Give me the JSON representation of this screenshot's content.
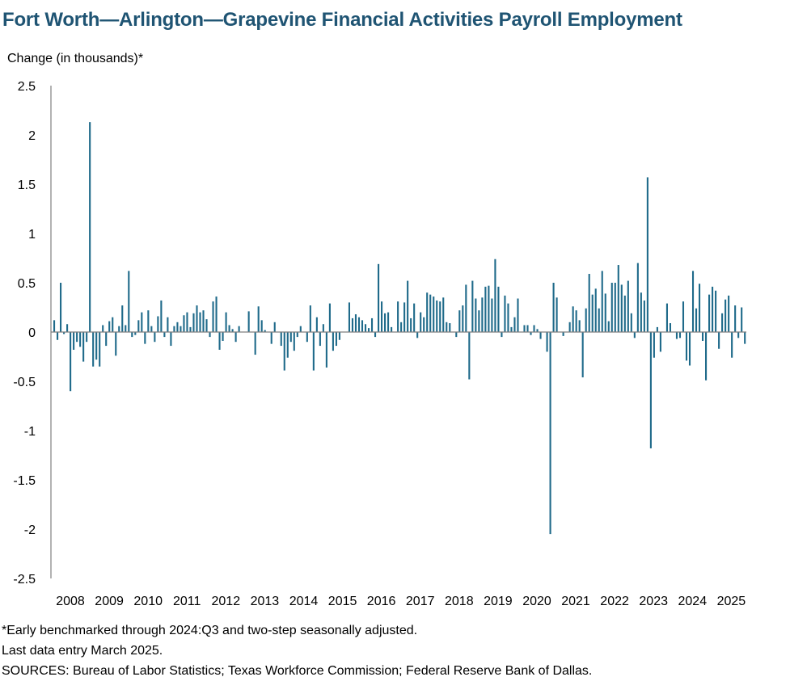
{
  "title": "Fort Worth—Arlington—Grapevine Financial Activities Payroll Employment",
  "footnotes": {
    "note1": "*Early benchmarked through 2024:Q3 and two-step seasonally adjusted.",
    "note2": "Last data entry March 2025.",
    "sources": "SOURCES: Bureau of Labor Statistics; Texas Workforce Commission; Federal Reserve Bank of Dallas."
  },
  "colors": {
    "bar": "#1f6a8a",
    "title": "#1f5473",
    "axis": "#7f7f7f"
  },
  "chart_data": {
    "type": "bar",
    "title": "Fort Worth—Arlington—Grapevine Financial Activities Payroll Employment",
    "ylabel": "Change (in thousands)*",
    "xlabel": "",
    "ylim": [
      -2.5,
      2.5
    ],
    "yticks": [
      2.5,
      2,
      1.5,
      1,
      0.5,
      0,
      -0.5,
      -1,
      -1.5,
      -2,
      -2.5
    ],
    "ytick_labels": [
      "2.5",
      "2",
      "1.5",
      "1",
      "0.5",
      "0",
      "-0.5",
      "-1",
      "-1.5",
      "-2",
      "-2.5"
    ],
    "xtick_labels": [
      "2008",
      "2009",
      "2010",
      "2011",
      "2012",
      "2013",
      "2014",
      "2015",
      "2016",
      "2017",
      "2018",
      "2019",
      "2020",
      "2021",
      "2022",
      "2023",
      "2024",
      "2025"
    ],
    "frequency": "monthly",
    "start": "2008-01",
    "end": "2025-03",
    "grid": false,
    "series": [
      {
        "values": [
          0.12,
          -0.08,
          0.5,
          -0.02,
          0.08,
          -0.6,
          -0.18,
          -0.1,
          -0.15,
          -0.3,
          -0.1,
          2.13,
          -0.35,
          -0.28,
          -0.35,
          0.07,
          -0.14,
          0.11,
          0.15,
          -0.24,
          0.06,
          0.27,
          0.07,
          0.62,
          -0.05,
          -0.03,
          0.12,
          0.2,
          -0.12,
          0.22,
          0.06,
          -0.1,
          0.16,
          0.32,
          -0.05,
          0.15,
          -0.14,
          0.06,
          0.1,
          0.06,
          0.17,
          0.2,
          0.05,
          0.19,
          0.27,
          0.2,
          0.22,
          0.13,
          -0.05,
          0.31,
          0.36,
          -0.18,
          -0.09,
          0.2,
          0.07,
          0.03,
          -0.1,
          0.06,
          0.0,
          0.0,
          0.21,
          0.0,
          -0.23,
          0.26,
          0.12,
          0.02,
          0.0,
          -0.12,
          0.1,
          0.0,
          -0.14,
          -0.39,
          -0.26,
          -0.1,
          -0.19,
          -0.05,
          0.06,
          0.0,
          -0.1,
          0.27,
          -0.39,
          0.15,
          -0.14,
          0.08,
          -0.36,
          0.29,
          -0.19,
          -0.14,
          -0.08,
          0.0,
          0.0,
          0.3,
          0.14,
          0.18,
          0.15,
          0.12,
          0.08,
          0.04,
          0.14,
          -0.05,
          0.69,
          0.31,
          0.19,
          0.2,
          0.05,
          0.0,
          0.31,
          0.1,
          0.3,
          0.52,
          0.14,
          0.29,
          -0.06,
          0.2,
          0.15,
          0.4,
          0.38,
          0.36,
          0.32,
          0.31,
          0.35,
          0.1,
          0.09,
          0.0,
          -0.05,
          0.22,
          0.27,
          0.48,
          -0.48,
          0.52,
          0.34,
          0.22,
          0.35,
          0.46,
          0.47,
          0.34,
          0.74,
          0.46,
          -0.05,
          0.37,
          0.29,
          0.05,
          0.15,
          0.34,
          0.0,
          0.07,
          0.07,
          -0.03,
          0.07,
          0.03,
          -0.07,
          0.0,
          -0.2,
          -2.05,
          0.5,
          0.35,
          0.0,
          -0.04,
          0.0,
          0.1,
          0.26,
          0.22,
          0.12,
          -0.46,
          0.24,
          0.59,
          0.38,
          0.44,
          0.24,
          0.62,
          0.39,
          0.11,
          0.5,
          0.5,
          0.68,
          0.48,
          0.37,
          0.52,
          0.19,
          -0.06,
          0.7,
          0.4,
          0.32,
          1.57,
          -1.18,
          -0.26,
          0.05,
          -0.2,
          0.0,
          0.29,
          0.09,
          0.0,
          -0.07,
          -0.06,
          0.31,
          -0.29,
          -0.34,
          0.62,
          0.24,
          0.49,
          -0.09,
          -0.49,
          0.38,
          0.46,
          0.42,
          -0.17,
          0.19,
          0.33,
          0.37,
          -0.26,
          0.27,
          -0.06,
          0.25,
          -0.12,
          0.0,
          0.0,
          0.0,
          0.0,
          0.0
        ]
      }
    ]
  }
}
